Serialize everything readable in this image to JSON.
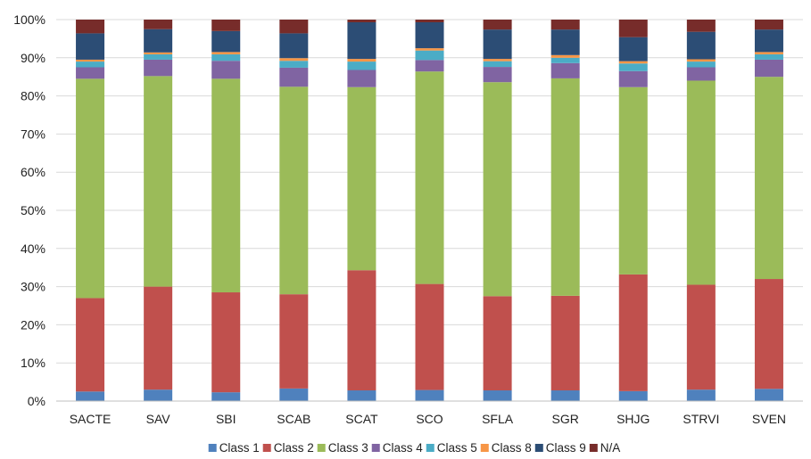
{
  "chart_data": {
    "type": "bar",
    "stacked": true,
    "percent": true,
    "title": "",
    "xlabel": "",
    "ylabel": "",
    "ylim": [
      0,
      100
    ],
    "yticks": [
      "0%",
      "10%",
      "20%",
      "30%",
      "40%",
      "50%",
      "60%",
      "70%",
      "80%",
      "90%",
      "100%"
    ],
    "grid": true,
    "legend_position": "bottom",
    "categories": [
      "SACTE",
      "SAV",
      "SBI",
      "SCAB",
      "SCAT",
      "SCO",
      "SFLA",
      "SGR",
      "SHJG",
      "STRVI",
      "SVEN"
    ],
    "series": [
      {
        "name": "Class 1",
        "color": "#4f81bd",
        "values": [
          2.5,
          3.0,
          2.3,
          3.3,
          2.8,
          2.9,
          2.8,
          2.8,
          2.6,
          3.0,
          3.2
        ]
      },
      {
        "name": "Class 2",
        "color": "#c0504d",
        "values": [
          24.5,
          27.0,
          26.2,
          24.7,
          31.5,
          27.8,
          24.7,
          24.8,
          30.6,
          27.5,
          28.8
        ]
      },
      {
        "name": "Class 3",
        "color": "#9bbb59",
        "values": [
          57.5,
          55.2,
          56.0,
          54.4,
          48.0,
          55.7,
          56.1,
          57.0,
          49.1,
          53.5,
          53.0
        ]
      },
      {
        "name": "Class 4",
        "color": "#8064a2",
        "values": [
          3.0,
          4.3,
          4.7,
          5.0,
          4.5,
          3.0,
          4.0,
          4.0,
          4.2,
          3.5,
          4.5
        ]
      },
      {
        "name": "Class 5",
        "color": "#4bacc6",
        "values": [
          1.5,
          1.4,
          1.7,
          1.8,
          2.2,
          2.5,
          1.5,
          1.4,
          2.0,
          1.5,
          1.4
        ]
      },
      {
        "name": "Class 8",
        "color": "#f79646",
        "values": [
          0.5,
          0.5,
          0.6,
          0.7,
          0.7,
          0.6,
          0.6,
          0.7,
          0.6,
          0.6,
          0.6
        ]
      },
      {
        "name": "Class 9",
        "color": "#2c4d75",
        "values": [
          6.9,
          6.1,
          5.5,
          6.5,
          9.6,
          6.8,
          7.7,
          6.7,
          6.3,
          7.2,
          5.9
        ]
      },
      {
        "name": "N/A",
        "color": "#772c2a",
        "values": [
          3.6,
          2.5,
          3.0,
          3.6,
          0.7,
          0.7,
          2.6,
          2.6,
          4.6,
          3.2,
          2.6
        ]
      }
    ]
  }
}
